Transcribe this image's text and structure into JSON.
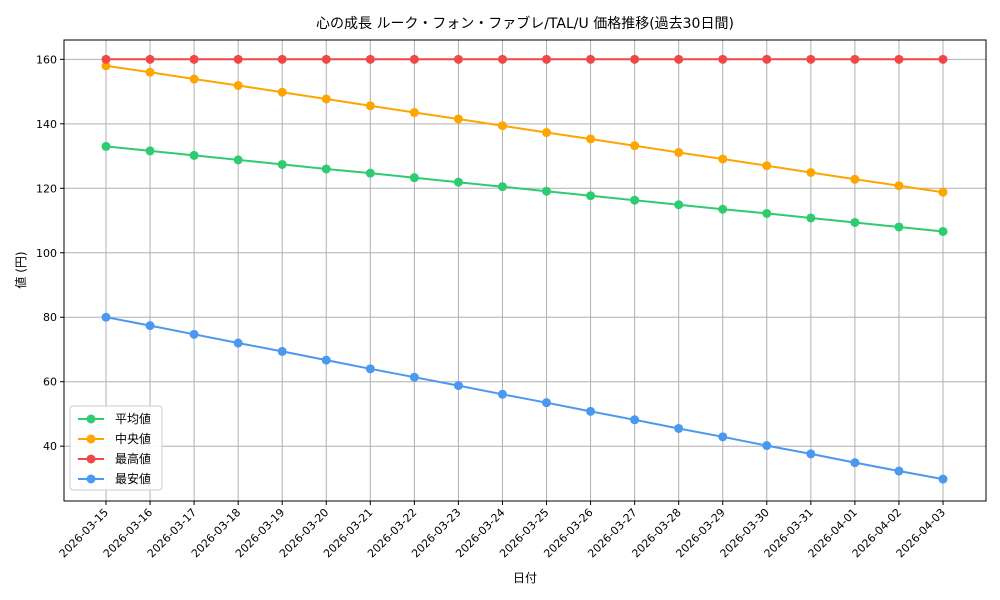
{
  "chart_data": {
    "type": "line",
    "title": "心の成長 ルーク・フォン・ファブレ/TAL/U 価格推移(過去30日間)",
    "xlabel": "日付",
    "ylabel": "値 (円)",
    "ylim": [
      23,
      166
    ],
    "yticks": [
      40,
      60,
      80,
      100,
      120,
      140,
      160
    ],
    "grid": true,
    "legend_position": "lower-left",
    "categories": [
      "2026-03-15",
      "2026-03-16",
      "2026-03-17",
      "2026-03-18",
      "2026-03-19",
      "2026-03-20",
      "2026-03-21",
      "2026-03-22",
      "2026-03-23",
      "2026-03-24",
      "2026-03-25",
      "2026-03-26",
      "2026-03-27",
      "2026-03-28",
      "2026-03-29",
      "2026-03-30",
      "2026-03-31",
      "2026-04-01",
      "2026-04-02",
      "2026-04-03"
    ],
    "series": [
      {
        "name": "平均値",
        "color": "#2ecc71",
        "values": [
          133.0,
          131.6,
          130.2,
          128.8,
          127.4,
          126.0,
          124.7,
          123.3,
          121.9,
          120.5,
          119.1,
          117.7,
          116.3,
          114.9,
          113.5,
          112.2,
          110.8,
          109.4,
          108.0,
          106.6
        ]
      },
      {
        "name": "中央値",
        "color": "#ffa500",
        "values": [
          158.0,
          156.0,
          153.9,
          151.9,
          149.8,
          147.7,
          145.6,
          143.5,
          141.5,
          139.4,
          137.3,
          135.3,
          133.2,
          131.1,
          129.1,
          127.0,
          124.9,
          122.8,
          120.8,
          118.8
        ]
      },
      {
        "name": "最高値",
        "color": "#f04848",
        "values": [
          160,
          160,
          160,
          160,
          160,
          160,
          160,
          160,
          160,
          160,
          160,
          160,
          160,
          160,
          160,
          160,
          160,
          160,
          160,
          160
        ]
      },
      {
        "name": "最安値",
        "color": "#4a98f0",
        "values": [
          80.0,
          77.4,
          74.7,
          72.0,
          69.4,
          66.7,
          64.0,
          61.4,
          58.8,
          56.1,
          53.5,
          50.8,
          48.2,
          45.5,
          42.9,
          40.2,
          37.6,
          34.9,
          32.3,
          29.8
        ]
      }
    ]
  }
}
